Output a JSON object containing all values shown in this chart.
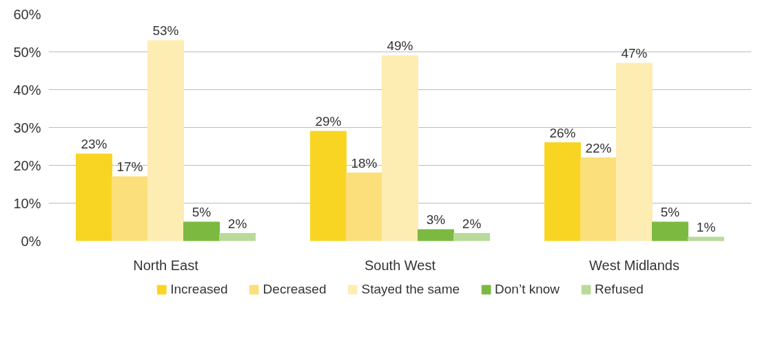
{
  "chart_data": {
    "type": "bar",
    "categories": [
      "North East",
      "South West",
      "West Midlands"
    ],
    "series": [
      {
        "name": "Increased",
        "color": "#f9d523",
        "values": [
          23,
          29,
          26
        ],
        "value_labels": [
          "23%",
          "29%",
          "26%"
        ]
      },
      {
        "name": "Decreased",
        "color": "#fbdf7b",
        "values": [
          17,
          18,
          22
        ],
        "value_labels": [
          "17%",
          "18%",
          "22%"
        ]
      },
      {
        "name": "Stayed the same",
        "color": "#fdedb3",
        "values": [
          53,
          49,
          47
        ],
        "value_labels": [
          "53%",
          "49%",
          "47%"
        ]
      },
      {
        "name": "Don’t know",
        "color": "#7cb940",
        "values": [
          5,
          3,
          5
        ],
        "value_labels": [
          "5%",
          "3%",
          "5%"
        ]
      },
      {
        "name": "Refused",
        "color": "#b9da9b",
        "values": [
          2,
          2,
          1
        ],
        "value_labels": [
          "2%",
          "2%",
          "1%"
        ]
      }
    ],
    "ylim": [
      0,
      60
    ],
    "yticks": [
      {
        "value": 0,
        "label": "0%"
      },
      {
        "value": 10,
        "label": "10%"
      },
      {
        "value": 20,
        "label": "20%"
      },
      {
        "value": 30,
        "label": "30%"
      },
      {
        "value": 40,
        "label": "40%"
      },
      {
        "value": 50,
        "label": "50%"
      },
      {
        "value": 60,
        "label": "60%"
      }
    ],
    "grid": "y",
    "legend": "bottom"
  }
}
